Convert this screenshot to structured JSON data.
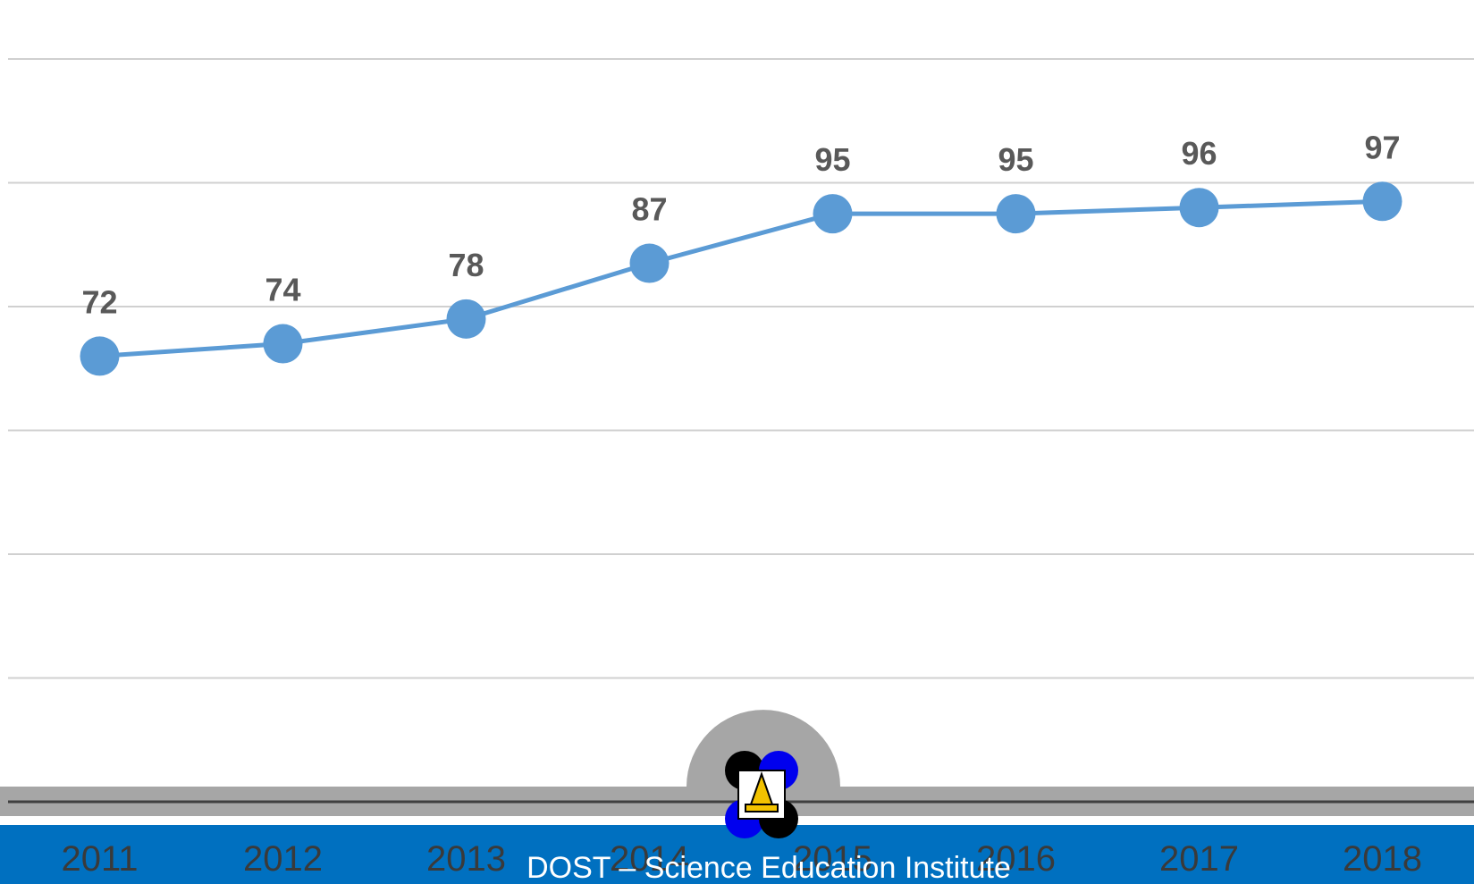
{
  "chart_data": {
    "type": "line",
    "categories": [
      "2011",
      "2012",
      "2013",
      "2014",
      "2015",
      "2016",
      "2017",
      "2018"
    ],
    "values": [
      72,
      74,
      78,
      87,
      95,
      95,
      96,
      97
    ],
    "color": "#5b9bd5",
    "ylim": [
      0,
      120
    ],
    "yticks": [
      0,
      20,
      40,
      60,
      80,
      100,
      120
    ],
    "grid": true
  },
  "footer": "DOST – Science Education Institute"
}
